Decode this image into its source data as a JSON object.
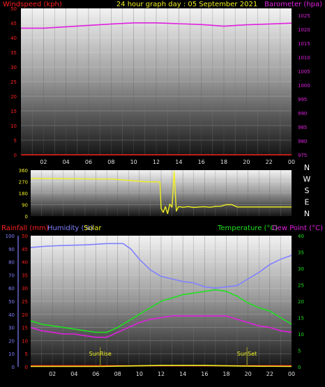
{
  "chart_data": [
    {
      "type": "line",
      "title": "24 hour graph day : 05 September 2021",
      "left_axis_label": "Windspeed (kph)",
      "right_axis_label": "Barometer (hpa)",
      "left_ticks": [
        "0",
        "5",
        "10",
        "15",
        "20",
        "25",
        "30",
        "35",
        "40",
        "45",
        "50"
      ],
      "right_ticks": [
        "975",
        "980",
        "985",
        "990",
        "995",
        "1000",
        "1005",
        "1010",
        "1015",
        "1020",
        "1025"
      ],
      "ylim_left": [
        0,
        50
      ],
      "ylim_right": [
        975,
        1027.5
      ],
      "x_ticks": [
        "02",
        "04",
        "06",
        "08",
        "10",
        "12",
        "14",
        "16",
        "18",
        "20",
        "22",
        "00"
      ],
      "xlim": [
        0,
        24
      ],
      "series": [
        {
          "name": "Barometer (hpa)",
          "axis": "right",
          "color": "#e020e0",
          "x": [
            0,
            2,
            4,
            6,
            8,
            10,
            12,
            14,
            16,
            18,
            20,
            22,
            24
          ],
          "y": [
            1020.4,
            1020.4,
            1020.9,
            1021.4,
            1021.9,
            1022.3,
            1022.3,
            1022.0,
            1021.7,
            1021.1,
            1021.6,
            1021.9,
            1022.2
          ]
        },
        {
          "name": "Windspeed (kph)",
          "axis": "left",
          "color": "#ff2020",
          "x": [
            0,
            24
          ],
          "y": [
            0,
            0
          ]
        }
      ]
    },
    {
      "type": "line",
      "title": "",
      "left_ticks": [
        "0",
        "90",
        "180",
        "270",
        "360"
      ],
      "right_labels": [
        "N",
        "W",
        "S",
        "E",
        "N"
      ],
      "ylim": [
        0,
        360
      ],
      "x_ticks": [
        "02",
        "04",
        "06",
        "08",
        "10",
        "12",
        "14",
        "16",
        "18",
        "20",
        "22",
        "00"
      ],
      "xlim": [
        0,
        24
      ],
      "series": [
        {
          "name": "Wind direction",
          "color": "#f0f020",
          "x": [
            0,
            7.5,
            10.5,
            11.9,
            12.0,
            12.2,
            12.4,
            12.6,
            12.8,
            13.0,
            13.2,
            13.4,
            13.6,
            14.0,
            14.5,
            15.0,
            15.5,
            16.0,
            16.5,
            17.0,
            17.5,
            18.0,
            18.5,
            19.0,
            20.0,
            22.0,
            24.0
          ],
          "y": [
            295,
            290,
            270,
            268,
            60,
            30,
            75,
            20,
            95,
            70,
            350,
            40,
            75,
            70,
            75,
            68,
            72,
            74,
            70,
            76,
            78,
            90,
            90,
            72,
            72,
            72,
            72
          ]
        }
      ]
    },
    {
      "type": "line",
      "title": "",
      "labels_top": [
        "Rainfall (mm)",
        "Humidity (%)",
        "Solar",
        "Temperature (°C)",
        "Dew Point (°C)"
      ],
      "left_ticks": [
        "0",
        "5",
        "10",
        "15",
        "20",
        "25",
        "30",
        "35",
        "40",
        "45",
        "50"
      ],
      "left_ticks_humidity": [
        "0",
        "10",
        "20",
        "30",
        "40",
        "50",
        "60",
        "70",
        "80",
        "90",
        "100"
      ],
      "right_ticks": [
        "0",
        "5",
        "10",
        "15",
        "20",
        "25",
        "30",
        "35",
        "40"
      ],
      "x_ticks": [
        "02",
        "04",
        "06",
        "08",
        "10",
        "12",
        "14",
        "16",
        "18",
        "20",
        "22",
        "00"
      ],
      "xlim": [
        0,
        24
      ],
      "annotations": [
        {
          "text": "SunRise",
          "x": 6.4
        },
        {
          "text": "SunSet",
          "x": 19.9
        }
      ],
      "series": [
        {
          "name": "Humidity (%)",
          "axis": "humidity",
          "color": "#8080ff",
          "ylim": [
            0,
            100
          ],
          "x": [
            0,
            1.5,
            3,
            5,
            7,
            8.5,
            9.2,
            10,
            11,
            12,
            13,
            14,
            15,
            16,
            17,
            18,
            19,
            20,
            21,
            22,
            23,
            24
          ],
          "y": [
            91,
            92,
            92.5,
            93,
            94,
            94,
            90,
            82,
            74,
            69,
            67,
            65,
            64,
            61,
            60,
            61,
            62,
            67,
            72,
            78,
            82,
            85
          ]
        },
        {
          "name": "Temperature (°C)",
          "axis": "right",
          "color": "#20e020",
          "ylim": [
            0,
            40
          ],
          "x": [
            0,
            1,
            2,
            3,
            4,
            5,
            6,
            7,
            8,
            9,
            10,
            11,
            12,
            13,
            14,
            15,
            16,
            17,
            18,
            19,
            20,
            21,
            22,
            23,
            24
          ],
          "y": [
            14,
            13,
            12.5,
            12,
            11.5,
            11,
            10.5,
            10.5,
            12,
            14,
            16,
            18,
            20,
            21,
            22,
            22.5,
            23,
            23.5,
            23,
            21.5,
            19.5,
            18,
            17,
            15,
            13
          ]
        },
        {
          "name": "Dew Point (°C)",
          "axis": "right",
          "color": "#e020e0",
          "ylim": [
            0,
            40
          ],
          "x": [
            0,
            1,
            2,
            3,
            4,
            5,
            6,
            7,
            8,
            9,
            10,
            11,
            12,
            13,
            14,
            15,
            16,
            17,
            18,
            19,
            20,
            21,
            22,
            23,
            24
          ],
          "y": [
            12,
            11,
            10.5,
            10,
            10,
            9.5,
            9,
            9,
            10.5,
            12,
            13.5,
            14.5,
            15,
            15.5,
            15.5,
            15.5,
            15.5,
            15.5,
            15.5,
            14.5,
            13.5,
            12.5,
            12,
            11,
            10.5
          ]
        },
        {
          "name": "Rainfall (mm)",
          "axis": "left",
          "color": "#ff2020",
          "ylim": [
            0,
            50
          ],
          "x": [
            0,
            24
          ],
          "y": [
            0.4,
            0.4
          ]
        },
        {
          "name": "Solar",
          "axis": "right",
          "color": "#f0f020",
          "ylim": [
            0,
            40
          ],
          "x": [
            0,
            6.5,
            8,
            12,
            16,
            20,
            24
          ],
          "y": [
            0.1,
            0.1,
            0.2,
            0.4,
            0.4,
            0.2,
            0.1
          ]
        }
      ]
    }
  ]
}
